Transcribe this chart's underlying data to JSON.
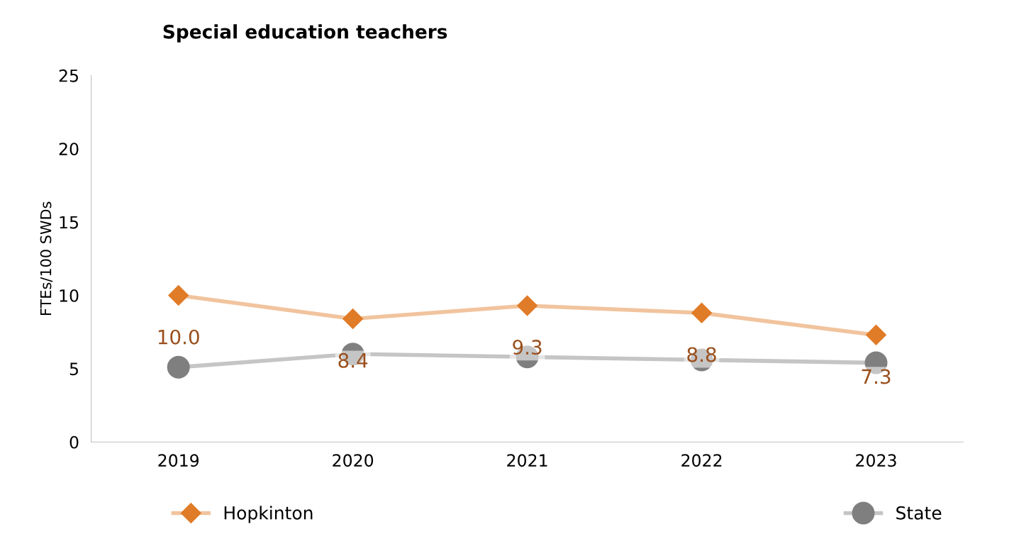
{
  "chart_data": {
    "type": "line",
    "title": "Special education teachers",
    "ylabel": "FTEs/100 SWDs",
    "categories": [
      "2019",
      "2020",
      "2021",
      "2022",
      "2023"
    ],
    "series": [
      {
        "name": "Hopkinton",
        "color": "#e07b28",
        "marker": "diamond",
        "values": [
          10.0,
          8.4,
          9.3,
          8.8,
          7.3
        ],
        "value_labels": [
          "10.0",
          "8.4",
          "9.3",
          "8.8",
          "7.3"
        ]
      },
      {
        "name": "State",
        "color": "#7f7f7f",
        "marker": "circle",
        "values": [
          5.1,
          6.0,
          5.8,
          5.6,
          5.4
        ]
      }
    ],
    "ylim": [
      0,
      25
    ],
    "yticks": [
      0,
      5,
      10,
      15,
      20,
      25
    ],
    "grid": false,
    "legend": "bottom"
  }
}
